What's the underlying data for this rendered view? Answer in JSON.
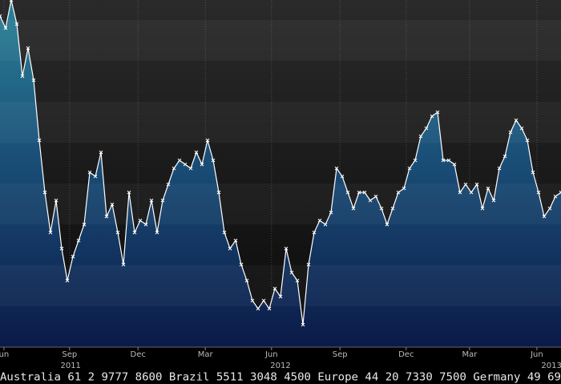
{
  "chart_data": {
    "type": "line",
    "values": [
      410,
      395,
      430,
      400,
      335,
      370,
      330,
      255,
      190,
      140,
      180,
      120,
      80,
      110,
      130,
      150,
      215,
      210,
      240,
      160,
      175,
      140,
      100,
      190,
      140,
      155,
      150,
      180,
      140,
      180,
      200,
      220,
      230,
      225,
      220,
      240,
      225,
      255,
      230,
      190,
      140,
      120,
      130,
      100,
      80,
      55,
      45,
      55,
      45,
      70,
      60,
      120,
      90,
      80,
      25,
      100,
      140,
      155,
      150,
      165,
      220,
      210,
      190,
      170,
      190,
      190,
      180,
      185,
      170,
      150,
      170,
      190,
      195,
      220,
      230,
      260,
      270,
      285,
      290,
      230,
      230,
      225,
      190,
      200,
      190,
      200,
      170,
      195,
      180,
      220,
      235,
      265,
      280,
      270,
      255,
      215,
      190,
      160,
      170,
      185,
      190
    ],
    "ylim": [
      0,
      430
    ],
    "xlim": [
      0,
      100
    ],
    "xticks": [
      {
        "value": 0.7,
        "label": "un"
      },
      {
        "value": 12.4,
        "label": "Sep"
      },
      {
        "value": 24.6,
        "label": "Dec"
      },
      {
        "value": 36.6,
        "label": "Mar"
      },
      {
        "value": 48.4,
        "label": "Jun"
      },
      {
        "value": 60.6,
        "label": "Sep"
      },
      {
        "value": 72.4,
        "label": "Dec"
      },
      {
        "value": 83.7,
        "label": "Mar"
      },
      {
        "value": 95.7,
        "label": "Jun"
      }
    ],
    "year_ticks": [
      {
        "value": 12.6,
        "label": "2011"
      },
      {
        "value": 50,
        "label": "2012"
      },
      {
        "value": 98.3,
        "label": "2013"
      }
    ],
    "grid": true,
    "color": "#ffffff",
    "footer": "Australia 61 2 9777 8600 Brazil 5511 3048 4500 Europe 44 20 7330 7500 Germany 49 69"
  }
}
